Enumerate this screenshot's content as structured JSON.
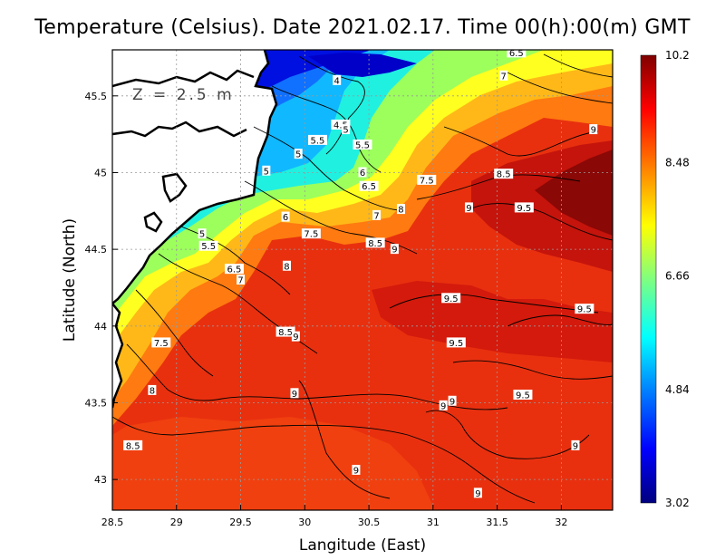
{
  "title": "Temperature (Celsius). Date 2021.02.17. Time 00(h):00(m)  GMT",
  "depth_label": "Z = 2.5 m",
  "x_axis": {
    "label": "Langitude (East)",
    "ticks": [
      "28.5",
      "29",
      "29.5",
      "30",
      "30.5",
      "31",
      "31.5",
      "32"
    ]
  },
  "y_axis": {
    "label": "Latitude (North)",
    "ticks": [
      "45.5",
      "45",
      "44.5",
      "44",
      "43.5",
      "43"
    ]
  },
  "colorbar": {
    "ticks": [
      "10.2",
      "8.48",
      "6.66",
      "4.84",
      "3.02"
    ],
    "min": 3.02,
    "max": 10.2,
    "colors": [
      "#00007f",
      "#0000ff",
      "#007fff",
      "#00ffff",
      "#7fff7f",
      "#ffff00",
      "#ff7f00",
      "#ff0000",
      "#7f0000"
    ]
  },
  "chart_data": {
    "type": "heatmap",
    "title": "Temperature (Celsius). Date 2021.02.17. Time 00(h):00(m)  GMT",
    "xlabel": "Langitude (East)",
    "ylabel": "Latitude (North)",
    "xlim": [
      28.5,
      32.4
    ],
    "ylim": [
      42.8,
      45.8
    ],
    "value_range": [
      3.02,
      10.2
    ],
    "grid": true,
    "contour_labels": [
      {
        "text": "6.5",
        "lon": 31.65,
        "lat": 45.78
      },
      {
        "text": "7",
        "lon": 31.55,
        "lat": 45.63
      },
      {
        "text": "4",
        "lon": 30.25,
        "lat": 45.6
      },
      {
        "text": "4.5",
        "lon": 30.28,
        "lat": 45.31
      },
      {
        "text": "5",
        "lon": 30.32,
        "lat": 45.28
      },
      {
        "text": "5.5",
        "lon": 30.1,
        "lat": 45.21
      },
      {
        "text": "5.5",
        "lon": 30.45,
        "lat": 45.18
      },
      {
        "text": "5",
        "lon": 29.95,
        "lat": 45.12
      },
      {
        "text": "5",
        "lon": 29.7,
        "lat": 45.01
      },
      {
        "text": "6",
        "lon": 30.45,
        "lat": 45.0
      },
      {
        "text": "6.5",
        "lon": 30.5,
        "lat": 44.91
      },
      {
        "text": "7.5",
        "lon": 30.95,
        "lat": 44.95
      },
      {
        "text": "8.5",
        "lon": 31.55,
        "lat": 44.99
      },
      {
        "text": "9",
        "lon": 32.25,
        "lat": 45.28
      },
      {
        "text": "9",
        "lon": 31.28,
        "lat": 44.77
      },
      {
        "text": "9.5",
        "lon": 31.71,
        "lat": 44.77
      },
      {
        "text": "8",
        "lon": 30.75,
        "lat": 44.76
      },
      {
        "text": "7",
        "lon": 30.56,
        "lat": 44.72
      },
      {
        "text": "6",
        "lon": 29.85,
        "lat": 44.71
      },
      {
        "text": "7.5",
        "lon": 30.05,
        "lat": 44.6
      },
      {
        "text": "8.5",
        "lon": 30.55,
        "lat": 44.54
      },
      {
        "text": "9",
        "lon": 30.7,
        "lat": 44.5
      },
      {
        "text": "5",
        "lon": 29.2,
        "lat": 44.6
      },
      {
        "text": "5.5",
        "lon": 29.25,
        "lat": 44.52
      },
      {
        "text": "6.5",
        "lon": 29.45,
        "lat": 44.37
      },
      {
        "text": "7",
        "lon": 29.5,
        "lat": 44.3
      },
      {
        "text": "8",
        "lon": 29.86,
        "lat": 44.39
      },
      {
        "text": "9.5",
        "lon": 31.14,
        "lat": 44.18
      },
      {
        "text": "9.5",
        "lon": 32.18,
        "lat": 44.11
      },
      {
        "text": "8.5",
        "lon": 29.85,
        "lat": 43.96
      },
      {
        "text": "9",
        "lon": 29.93,
        "lat": 43.93
      },
      {
        "text": "7.5",
        "lon": 28.88,
        "lat": 43.89
      },
      {
        "text": "9.5",
        "lon": 31.18,
        "lat": 43.89
      },
      {
        "text": "8",
        "lon": 28.81,
        "lat": 43.58
      },
      {
        "text": "9",
        "lon": 29.92,
        "lat": 43.56
      },
      {
        "text": "9.5",
        "lon": 31.7,
        "lat": 43.55
      },
      {
        "text": "9",
        "lon": 31.15,
        "lat": 43.51
      },
      {
        "text": "9",
        "lon": 31.08,
        "lat": 43.48
      },
      {
        "text": "8.5",
        "lon": 28.66,
        "lat": 43.22
      },
      {
        "text": "9",
        "lon": 32.11,
        "lat": 43.22
      },
      {
        "text": "9",
        "lon": 30.4,
        "lat": 43.06
      },
      {
        "text": "9",
        "lon": 31.35,
        "lat": 42.91
      }
    ]
  }
}
